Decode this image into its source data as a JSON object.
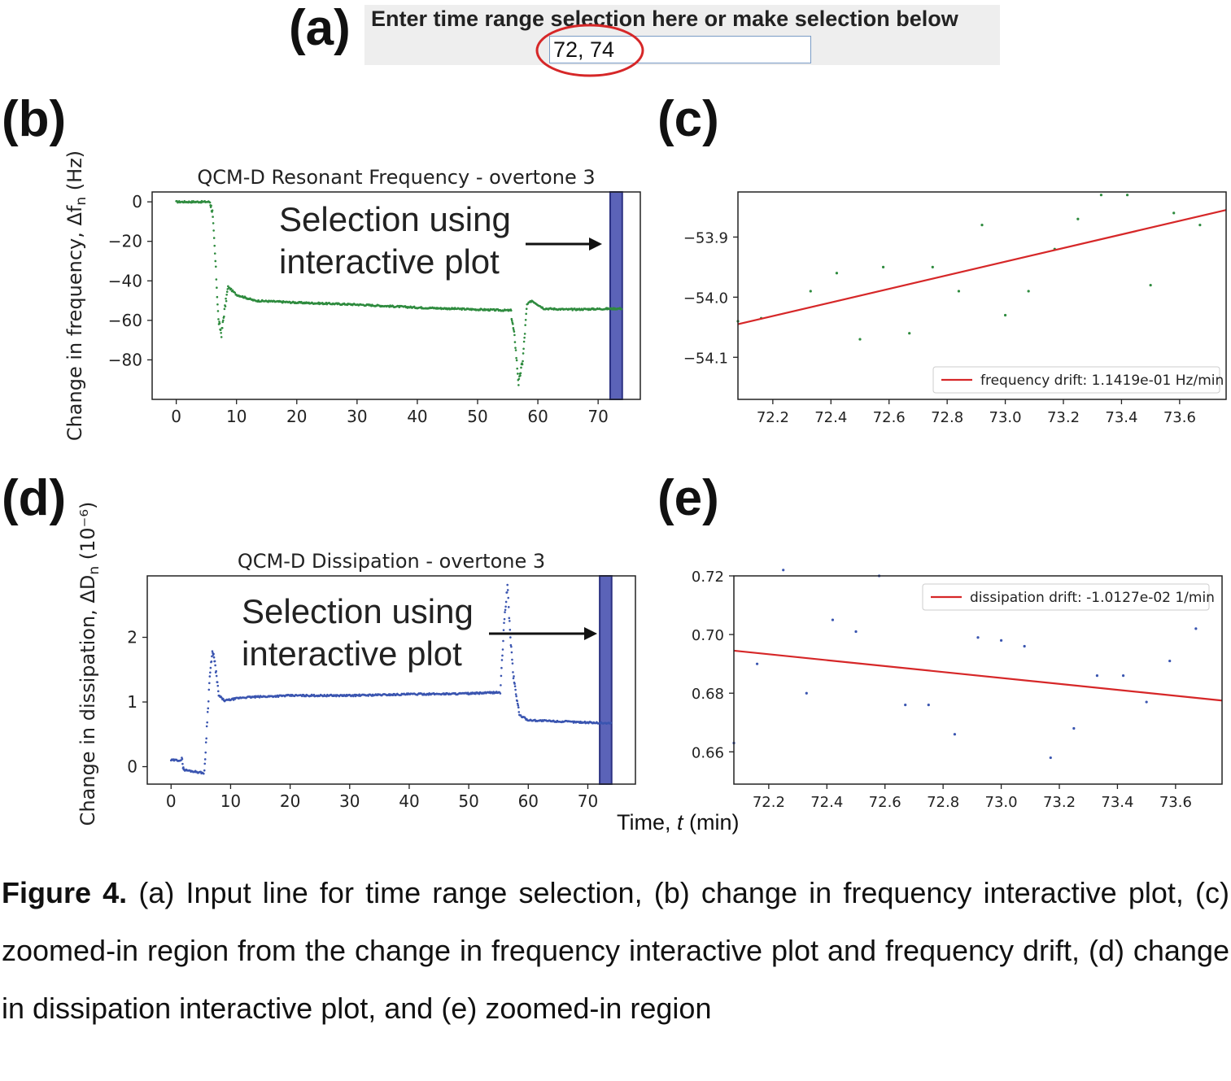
{
  "panels": {
    "a": "(a)",
    "b": "(b)",
    "c": "(c)",
    "d": "(d)",
    "e": "(e)"
  },
  "input": {
    "label": "Enter time range selection here or make selection below",
    "value": "72, 74"
  },
  "annotation": {
    "line1": "Selection using",
    "line2": "interactive plot"
  },
  "shared_xlabel": {
    "prefix": "Time, ",
    "var": "t",
    "suffix": " (min)"
  },
  "caption": {
    "lead": "Figure 4.",
    "text": " (a) Input line for time range selection, (b) change in frequency interactive plot, (c) zoomed-in region from the change in frequency interactive plot and frequency drift, (d) change in dissipation interactive plot, and (e) zoomed-in region"
  },
  "colors": {
    "freq_points": "#2e8b3e",
    "diss_points": "#3a55b0",
    "fit_line": "#d62728",
    "selection": "#5b63b8",
    "circle": "#d62728"
  },
  "chart_data": [
    {
      "id": "b",
      "type": "scatter",
      "title": "QCM-D Resonant Frequency - overtone 3",
      "ylabel": "Change in frequency, Δf_n (Hz)",
      "xlim": [
        -4,
        77
      ],
      "ylim": [
        -100,
        5
      ],
      "xticks": [
        0,
        10,
        20,
        30,
        40,
        50,
        60,
        70
      ],
      "yticks": [
        0,
        -20,
        -40,
        -60,
        -80
      ],
      "selection": [
        72,
        74
      ],
      "trace": [
        [
          0,
          0
        ],
        [
          5.6,
          0
        ],
        [
          6.0,
          -5
        ],
        [
          6.5,
          -30
        ],
        [
          7,
          -60
        ],
        [
          7.5,
          -67
        ],
        [
          8,
          -55
        ],
        [
          8.6,
          -43
        ],
        [
          10,
          -47
        ],
        [
          13,
          -50
        ],
        [
          20,
          -51
        ],
        [
          30,
          -52
        ],
        [
          40,
          -53.5
        ],
        [
          50,
          -54.5
        ],
        [
          55.5,
          -55
        ],
        [
          56.2,
          -70
        ],
        [
          56.8,
          -92
        ],
        [
          57.5,
          -80
        ],
        [
          58.2,
          -52
        ],
        [
          59,
          -50
        ],
        [
          61,
          -54
        ],
        [
          65,
          -54.5
        ],
        [
          74,
          -54
        ]
      ]
    },
    {
      "id": "c",
      "type": "scatter",
      "xlim": [
        72.08,
        73.76
      ],
      "ylim": [
        -54.17,
        -53.825
      ],
      "xticks": [
        72.2,
        72.4,
        72.6,
        72.8,
        73.0,
        73.2,
        73.4,
        73.6
      ],
      "yticks": [
        -53.9,
        -54.0,
        -54.1
      ],
      "points": [
        [
          72.08,
          -54.04
        ],
        [
          72.16,
          -54.035
        ],
        [
          72.33,
          -53.99
        ],
        [
          72.42,
          -53.96
        ],
        [
          72.5,
          -54.07
        ],
        [
          72.58,
          -53.95
        ],
        [
          72.67,
          -54.06
        ],
        [
          72.75,
          -53.95
        ],
        [
          72.84,
          -53.99
        ],
        [
          72.92,
          -53.88
        ],
        [
          73.0,
          -54.03
        ],
        [
          73.08,
          -53.99
        ],
        [
          73.17,
          -53.92
        ],
        [
          73.25,
          -53.87
        ],
        [
          73.33,
          -53.83
        ],
        [
          73.42,
          -53.83
        ],
        [
          73.5,
          -53.98
        ],
        [
          73.58,
          -53.86
        ],
        [
          73.67,
          -53.88
        ]
      ],
      "fit": [
        [
          72.08,
          -54.045
        ],
        [
          73.76,
          -53.855
        ]
      ],
      "legend": "frequency drift: 1.1419e-01 Hz/min"
    },
    {
      "id": "d",
      "type": "scatter",
      "title": "QCM-D Dissipation - overtone 3",
      "ylabel": "Change in dissipation, ΔD_n (10⁻⁶)",
      "xlim": [
        -4,
        78
      ],
      "ylim": [
        -0.27,
        2.95
      ],
      "xticks": [
        0,
        10,
        20,
        30,
        40,
        50,
        60,
        70
      ],
      "yticks": [
        0,
        1,
        2
      ],
      "selection": [
        72,
        74
      ],
      "trace": [
        [
          0,
          0.1
        ],
        [
          1.8,
          0.1
        ],
        [
          2.2,
          -0.05
        ],
        [
          5.6,
          -0.1
        ],
        [
          6,
          0.6
        ],
        [
          6.5,
          1.4
        ],
        [
          7,
          1.8
        ],
        [
          7.5,
          1.5
        ],
        [
          8,
          1.1
        ],
        [
          9,
          1.02
        ],
        [
          12,
          1.07
        ],
        [
          20,
          1.1
        ],
        [
          30,
          1.1
        ],
        [
          40,
          1.12
        ],
        [
          50,
          1.13
        ],
        [
          55.3,
          1.15
        ],
        [
          56,
          2.3
        ],
        [
          56.5,
          2.8
        ],
        [
          57,
          2.0
        ],
        [
          57.5,
          1.4
        ],
        [
          58.5,
          0.8
        ],
        [
          60,
          0.72
        ],
        [
          65,
          0.7
        ],
        [
          74,
          0.67
        ]
      ]
    },
    {
      "id": "e",
      "type": "scatter",
      "xlim": [
        72.08,
        73.76
      ],
      "ylim": [
        0.649,
        0.72
      ],
      "xticks": [
        72.2,
        72.4,
        72.6,
        72.8,
        73.0,
        73.2,
        73.4,
        73.6
      ],
      "yticks": [
        0.72,
        0.7,
        0.68,
        0.66
      ],
      "points": [
        [
          72.08,
          0.663
        ],
        [
          72.16,
          0.69
        ],
        [
          72.25,
          0.722
        ],
        [
          72.33,
          0.68
        ],
        [
          72.42,
          0.705
        ],
        [
          72.5,
          0.701
        ],
        [
          72.58,
          0.72
        ],
        [
          72.67,
          0.676
        ],
        [
          72.75,
          0.676
        ],
        [
          72.84,
          0.666
        ],
        [
          72.92,
          0.699
        ],
        [
          73.0,
          0.698
        ],
        [
          73.08,
          0.696
        ],
        [
          73.17,
          0.658
        ],
        [
          73.25,
          0.668
        ],
        [
          73.33,
          0.686
        ],
        [
          73.42,
          0.686
        ],
        [
          73.5,
          0.677
        ],
        [
          73.58,
          0.691
        ],
        [
          73.67,
          0.702
        ]
      ],
      "fit": [
        [
          72.08,
          0.6945
        ],
        [
          73.76,
          0.6775
        ]
      ],
      "legend": "dissipation drift: -1.0127e-02 1/min"
    }
  ]
}
